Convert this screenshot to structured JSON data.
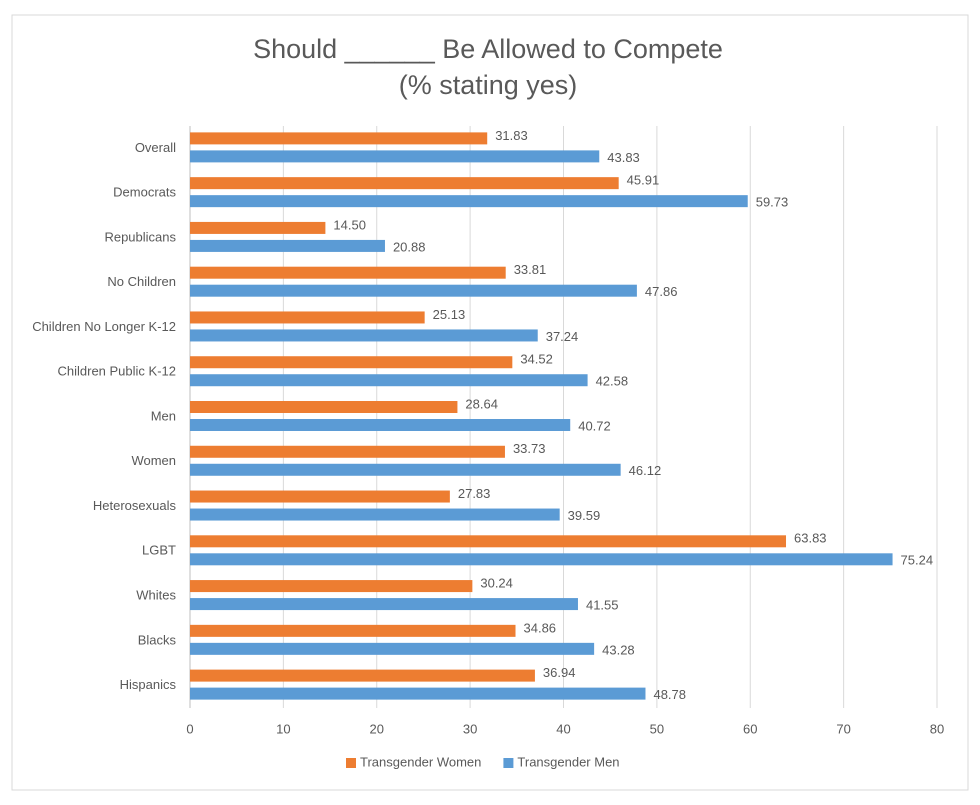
{
  "chart_data": {
    "type": "hbar",
    "title": "Should ______ Be Allowed to Compete",
    "subtitle": "(% stating yes)",
    "categories": [
      "Overall",
      "Democrats",
      "Republicans",
      "No Children",
      "Children No Longer K-12",
      "Children Public K-12",
      "Men",
      "Women",
      "Heterosexuals",
      "LGBT",
      "Whites",
      "Blacks",
      "Hispanics"
    ],
    "series": [
      {
        "name": "Transgender Women",
        "color": "#ed7d31",
        "values": [
          31.83,
          45.91,
          14.5,
          33.81,
          25.13,
          34.52,
          28.64,
          33.73,
          27.83,
          63.83,
          30.24,
          34.86,
          36.94
        ],
        "value_labels": [
          "31.83",
          "45.91",
          "14.50",
          "33.81",
          "25.13",
          "34.52",
          "28.64",
          "33.73",
          "27.83",
          "63.83",
          "30.24",
          "34.86",
          "36.94"
        ]
      },
      {
        "name": "Transgender Men",
        "color": "#5b9bd5",
        "values": [
          43.83,
          59.73,
          20.88,
          47.86,
          37.24,
          42.58,
          40.72,
          46.12,
          39.59,
          75.24,
          41.55,
          43.28,
          48.78
        ],
        "value_labels": [
          "43.83",
          "59.73",
          "20.88",
          "47.86",
          "37.24",
          "42.58",
          "40.72",
          "46.12",
          "39.59",
          "75.24",
          "41.55",
          "43.28",
          "48.78"
        ]
      }
    ],
    "xlim": [
      0,
      80
    ],
    "xticks": [
      0,
      10,
      20,
      30,
      40,
      50,
      60,
      70,
      80
    ],
    "grid": true,
    "legend": "bottom"
  }
}
